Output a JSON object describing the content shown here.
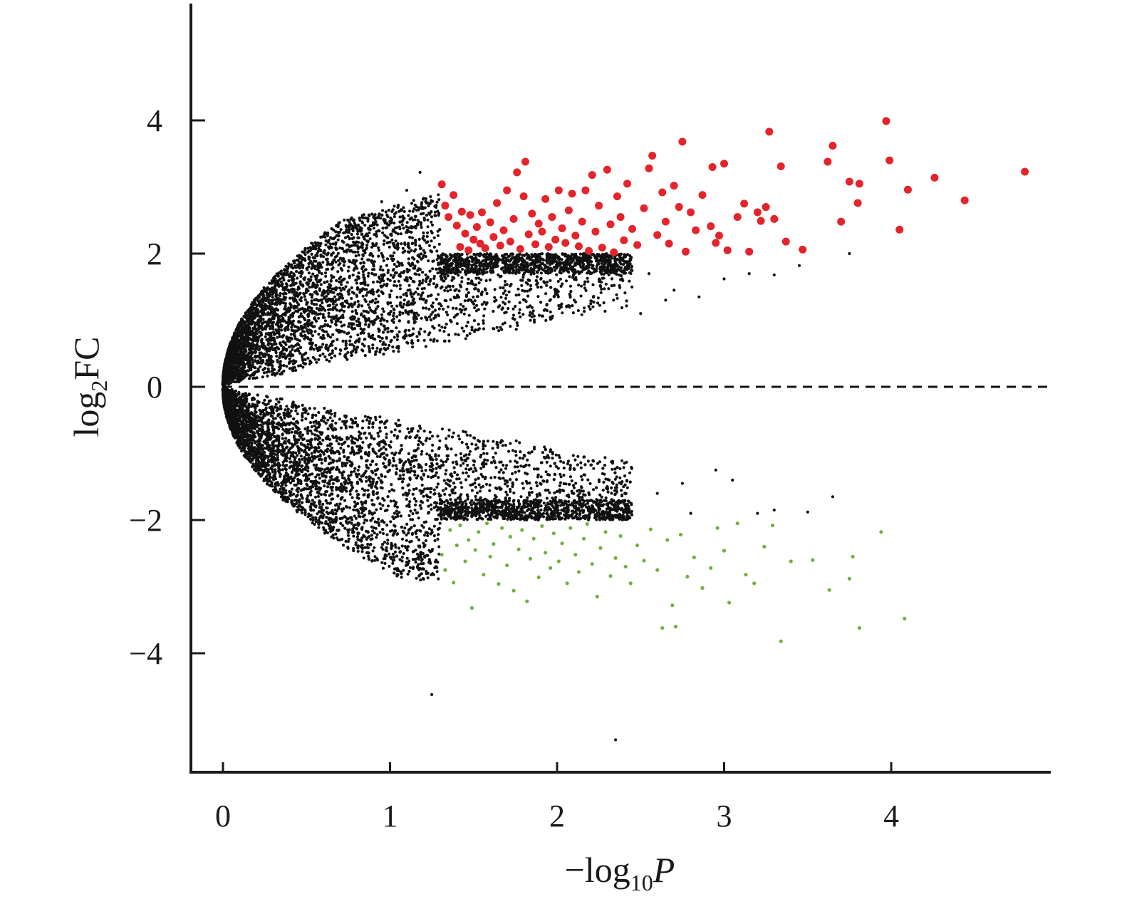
{
  "chart_data": {
    "type": "scatter",
    "title": "",
    "xlabel": {
      "prefix": "−log",
      "subscript": "10",
      "suffix": "P"
    },
    "ylabel": {
      "prefix": "log",
      "subscript": "2",
      "suffix": "FC"
    },
    "xlim": [
      -0.2,
      4.9
    ],
    "ylim": [
      -5.8,
      5.8
    ],
    "xticks": [
      0,
      1,
      2,
      3,
      4
    ],
    "yticks": [
      -4,
      -2,
      0,
      2,
      4
    ],
    "xtick_labels": [
      "0",
      "1",
      "2",
      "3",
      "4"
    ],
    "ytick_labels": [
      "−4",
      "−2",
      "0",
      "2",
      "4"
    ],
    "reference_line": {
      "y": 0,
      "style": "dashed"
    },
    "grid": false,
    "legend": "none",
    "colors": {
      "up": "#e3242b",
      "down": "#6db33f",
      "not_significant": "#111111"
    },
    "thresholds": {
      "x": 1.3,
      "y_abs": 2
    },
    "series": [
      {
        "category": "up",
        "points": [
          [
            1.31,
            3.04
          ],
          [
            1.33,
            2.72
          ],
          [
            1.35,
            2.55
          ],
          [
            1.38,
            2.88
          ],
          [
            1.4,
            2.42
          ],
          [
            1.42,
            2.1
          ],
          [
            1.43,
            2.63
          ],
          [
            1.45,
            2.3
          ],
          [
            1.47,
            2.05
          ],
          [
            1.48,
            2.58
          ],
          [
            1.5,
            2.21
          ],
          [
            1.52,
            2.4
          ],
          [
            1.54,
            2.15
          ],
          [
            1.55,
            2.62
          ],
          [
            1.57,
            2.08
          ],
          [
            1.6,
            2.47
          ],
          [
            1.62,
            2.25
          ],
          [
            1.64,
            2.76
          ],
          [
            1.66,
            2.12
          ],
          [
            1.68,
            2.35
          ],
          [
            1.7,
            2.95
          ],
          [
            1.72,
            2.18
          ],
          [
            1.74,
            2.52
          ],
          [
            1.76,
            3.22
          ],
          [
            1.78,
            2.07
          ],
          [
            1.8,
            2.86
          ],
          [
            1.81,
            3.38
          ],
          [
            1.83,
            2.29
          ],
          [
            1.85,
            2.6
          ],
          [
            1.87,
            2.14
          ],
          [
            1.89,
            2.45
          ],
          [
            1.91,
            2.33
          ],
          [
            1.93,
            2.82
          ],
          [
            1.95,
            2.1
          ],
          [
            1.97,
            2.55
          ],
          [
            1.99,
            2.21
          ],
          [
            2.01,
            2.95
          ],
          [
            2.03,
            2.38
          ],
          [
            2.05,
            2.16
          ],
          [
            2.07,
            2.65
          ],
          [
            2.09,
            2.9
          ],
          [
            2.11,
            2.27
          ],
          [
            2.13,
            2.11
          ],
          [
            2.15,
            2.48
          ],
          [
            2.17,
            2.95
          ],
          [
            2.19,
            2.04
          ],
          [
            2.21,
            3.18
          ],
          [
            2.23,
            2.33
          ],
          [
            2.25,
            2.72
          ],
          [
            2.27,
            2.09
          ],
          [
            2.3,
            3.26
          ],
          [
            2.32,
            2.44
          ],
          [
            2.34,
            2.02
          ],
          [
            2.36,
            2.86
          ],
          [
            2.38,
            2.55
          ],
          [
            2.4,
            2.2
          ],
          [
            2.42,
            3.05
          ],
          [
            2.45,
            2.37
          ],
          [
            2.48,
            2.13
          ],
          [
            2.52,
            2.68
          ],
          [
            2.55,
            3.28
          ],
          [
            2.57,
            3.47
          ],
          [
            2.6,
            2.28
          ],
          [
            2.63,
            2.92
          ],
          [
            2.65,
            2.48
          ],
          [
            2.67,
            2.15
          ],
          [
            2.7,
            3.02
          ],
          [
            2.73,
            2.7
          ],
          [
            2.75,
            3.68
          ],
          [
            2.77,
            2.03
          ],
          [
            2.8,
            2.62
          ],
          [
            2.83,
            2.35
          ],
          [
            2.87,
            2.88
          ],
          [
            2.92,
            2.41
          ],
          [
            2.93,
            3.3
          ],
          [
            2.95,
            2.16
          ],
          [
            2.97,
            2.27
          ],
          [
            3.0,
            3.35
          ],
          [
            3.02,
            2.05
          ],
          [
            3.08,
            2.55
          ],
          [
            3.12,
            2.75
          ],
          [
            3.15,
            2.03
          ],
          [
            3.2,
            2.62
          ],
          [
            3.22,
            2.49
          ],
          [
            3.25,
            2.7
          ],
          [
            3.27,
            3.83
          ],
          [
            3.3,
            2.52
          ],
          [
            3.34,
            3.31
          ],
          [
            3.37,
            2.18
          ],
          [
            3.47,
            2.06
          ],
          [
            3.62,
            3.38
          ],
          [
            3.65,
            3.62
          ],
          [
            3.7,
            2.48
          ],
          [
            3.75,
            3.08
          ],
          [
            3.8,
            2.76
          ],
          [
            3.81,
            3.05
          ],
          [
            3.97,
            3.99
          ],
          [
            3.99,
            3.4
          ],
          [
            4.05,
            2.36
          ],
          [
            4.1,
            2.96
          ],
          [
            4.26,
            3.14
          ],
          [
            4.44,
            2.8
          ],
          [
            4.8,
            3.23
          ]
        ]
      },
      {
        "category": "down",
        "points": [
          [
            1.31,
            -2.52
          ],
          [
            1.33,
            -2.75
          ],
          [
            1.36,
            -2.15
          ],
          [
            1.38,
            -2.94
          ],
          [
            1.4,
            -2.38
          ],
          [
            1.42,
            -2.08
          ],
          [
            1.45,
            -2.62
          ],
          [
            1.47,
            -2.3
          ],
          [
            1.49,
            -3.32
          ],
          [
            1.51,
            -2.45
          ],
          [
            1.53,
            -2.18
          ],
          [
            1.56,
            -2.82
          ],
          [
            1.58,
            -2.05
          ],
          [
            1.6,
            -2.55
          ],
          [
            1.62,
            -2.36
          ],
          [
            1.65,
            -2.96
          ],
          [
            1.67,
            -2.12
          ],
          [
            1.7,
            -2.68
          ],
          [
            1.72,
            -2.25
          ],
          [
            1.74,
            -3.06
          ],
          [
            1.77,
            -2.44
          ],
          [
            1.79,
            -2.15
          ],
          [
            1.82,
            -3.22
          ],
          [
            1.84,
            -2.58
          ],
          [
            1.86,
            -2.28
          ],
          [
            1.89,
            -2.86
          ],
          [
            1.91,
            -2.09
          ],
          [
            1.93,
            -2.49
          ],
          [
            1.96,
            -2.72
          ],
          [
            1.98,
            -2.2
          ],
          [
            2.01,
            -2.62
          ],
          [
            2.03,
            -2.35
          ],
          [
            2.06,
            -2.95
          ],
          [
            2.08,
            -2.12
          ],
          [
            2.11,
            -2.52
          ],
          [
            2.13,
            -2.78
          ],
          [
            2.16,
            -2.28
          ],
          [
            2.18,
            -2.06
          ],
          [
            2.21,
            -2.66
          ],
          [
            2.24,
            -3.15
          ],
          [
            2.26,
            -2.42
          ],
          [
            2.29,
            -2.18
          ],
          [
            2.32,
            -2.84
          ],
          [
            2.35,
            -2.57
          ],
          [
            2.38,
            -2.24
          ],
          [
            2.41,
            -2.7
          ],
          [
            2.44,
            -2.95
          ],
          [
            2.48,
            -2.38
          ],
          [
            2.52,
            -2.61
          ],
          [
            2.56,
            -2.14
          ],
          [
            2.6,
            -2.75
          ],
          [
            2.63,
            -3.62
          ],
          [
            2.66,
            -2.3
          ],
          [
            2.69,
            -3.28
          ],
          [
            2.71,
            -3.6
          ],
          [
            2.74,
            -2.22
          ],
          [
            2.78,
            -2.85
          ],
          [
            2.82,
            -2.56
          ],
          [
            2.87,
            -3.02
          ],
          [
            2.92,
            -2.72
          ],
          [
            2.96,
            -2.12
          ],
          [
            3.0,
            -2.46
          ],
          [
            3.03,
            -3.24
          ],
          [
            3.08,
            -2.05
          ],
          [
            3.13,
            -2.82
          ],
          [
            3.18,
            -2.95
          ],
          [
            3.24,
            -2.4
          ],
          [
            3.29,
            -2.08
          ],
          [
            3.34,
            -3.82
          ],
          [
            3.4,
            -2.62
          ],
          [
            3.53,
            -2.6
          ],
          [
            3.63,
            -3.05
          ],
          [
            3.75,
            -2.88
          ],
          [
            3.77,
            -2.55
          ],
          [
            3.81,
            -3.62
          ],
          [
            3.94,
            -2.18
          ],
          [
            4.08,
            -3.48
          ]
        ]
      }
    ]
  }
}
